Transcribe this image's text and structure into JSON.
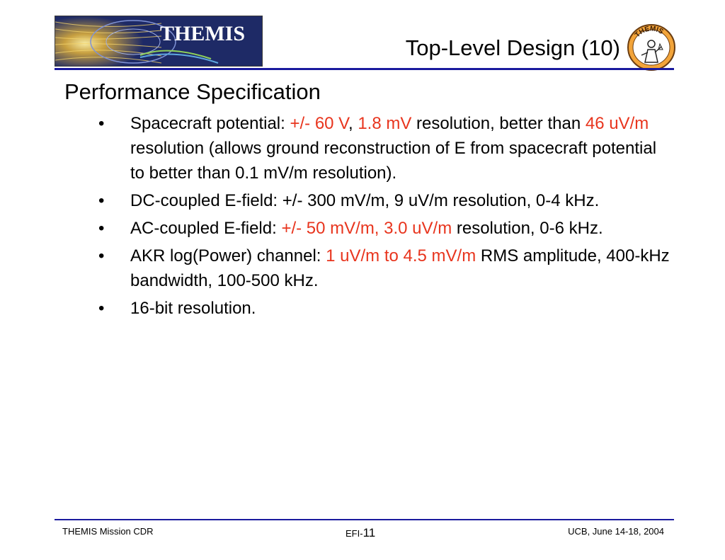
{
  "header": {
    "logo_text": "THEMIS",
    "title": "Top-Level Design (10)",
    "seal_text": "THEMIS"
  },
  "content": {
    "heading": "Performance Specification",
    "bullet_glyph": "•",
    "items": [
      {
        "segments": [
          {
            "text": "Spacecraft potential: ",
            "red": false
          },
          {
            "text": "+/- 60 V",
            "red": true
          },
          {
            "text": ", ",
            "red": false
          },
          {
            "text": "1.8 mV",
            "red": true
          },
          {
            "text": " resolution, better than ",
            "red": false
          },
          {
            "text": "46 uV/m",
            "red": true
          },
          {
            "text": " resolution (allows ground reconstruction of E from spacecraft potential to better than 0.1 mV/m resolution).",
            "red": false
          }
        ]
      },
      {
        "segments": [
          {
            "text": "DC-coupled E-field:  +/- 300 mV/m, 9 uV/m resolution, 0-4 kHz.",
            "red": false
          }
        ]
      },
      {
        "segments": [
          {
            "text": "AC-coupled E-field:  ",
            "red": false
          },
          {
            "text": "+/- 50 mV/m, 3.0 uV/m",
            "red": true
          },
          {
            "text": " resolution, 0-6 kHz.",
            "red": false
          }
        ]
      },
      {
        "segments": [
          {
            "text": "AKR log(Power) channel:  ",
            "red": false
          },
          {
            "text": "1 uV/m to 4.5 mV/m",
            "red": true
          },
          {
            "text": " RMS amplitude, 400-kHz bandwidth, 100-500 kHz.",
            "red": false
          }
        ]
      },
      {
        "segments": [
          {
            "text": "16-bit resolution.",
            "red": false
          }
        ]
      }
    ]
  },
  "footer": {
    "left": "THEMIS Mission CDR",
    "center_prefix": "EFI-",
    "page_number": "11",
    "right": "UCB, June 14-18, 2004"
  },
  "colors": {
    "accent_red": "#e8351e",
    "rule_blue": "#1a1a9e"
  }
}
